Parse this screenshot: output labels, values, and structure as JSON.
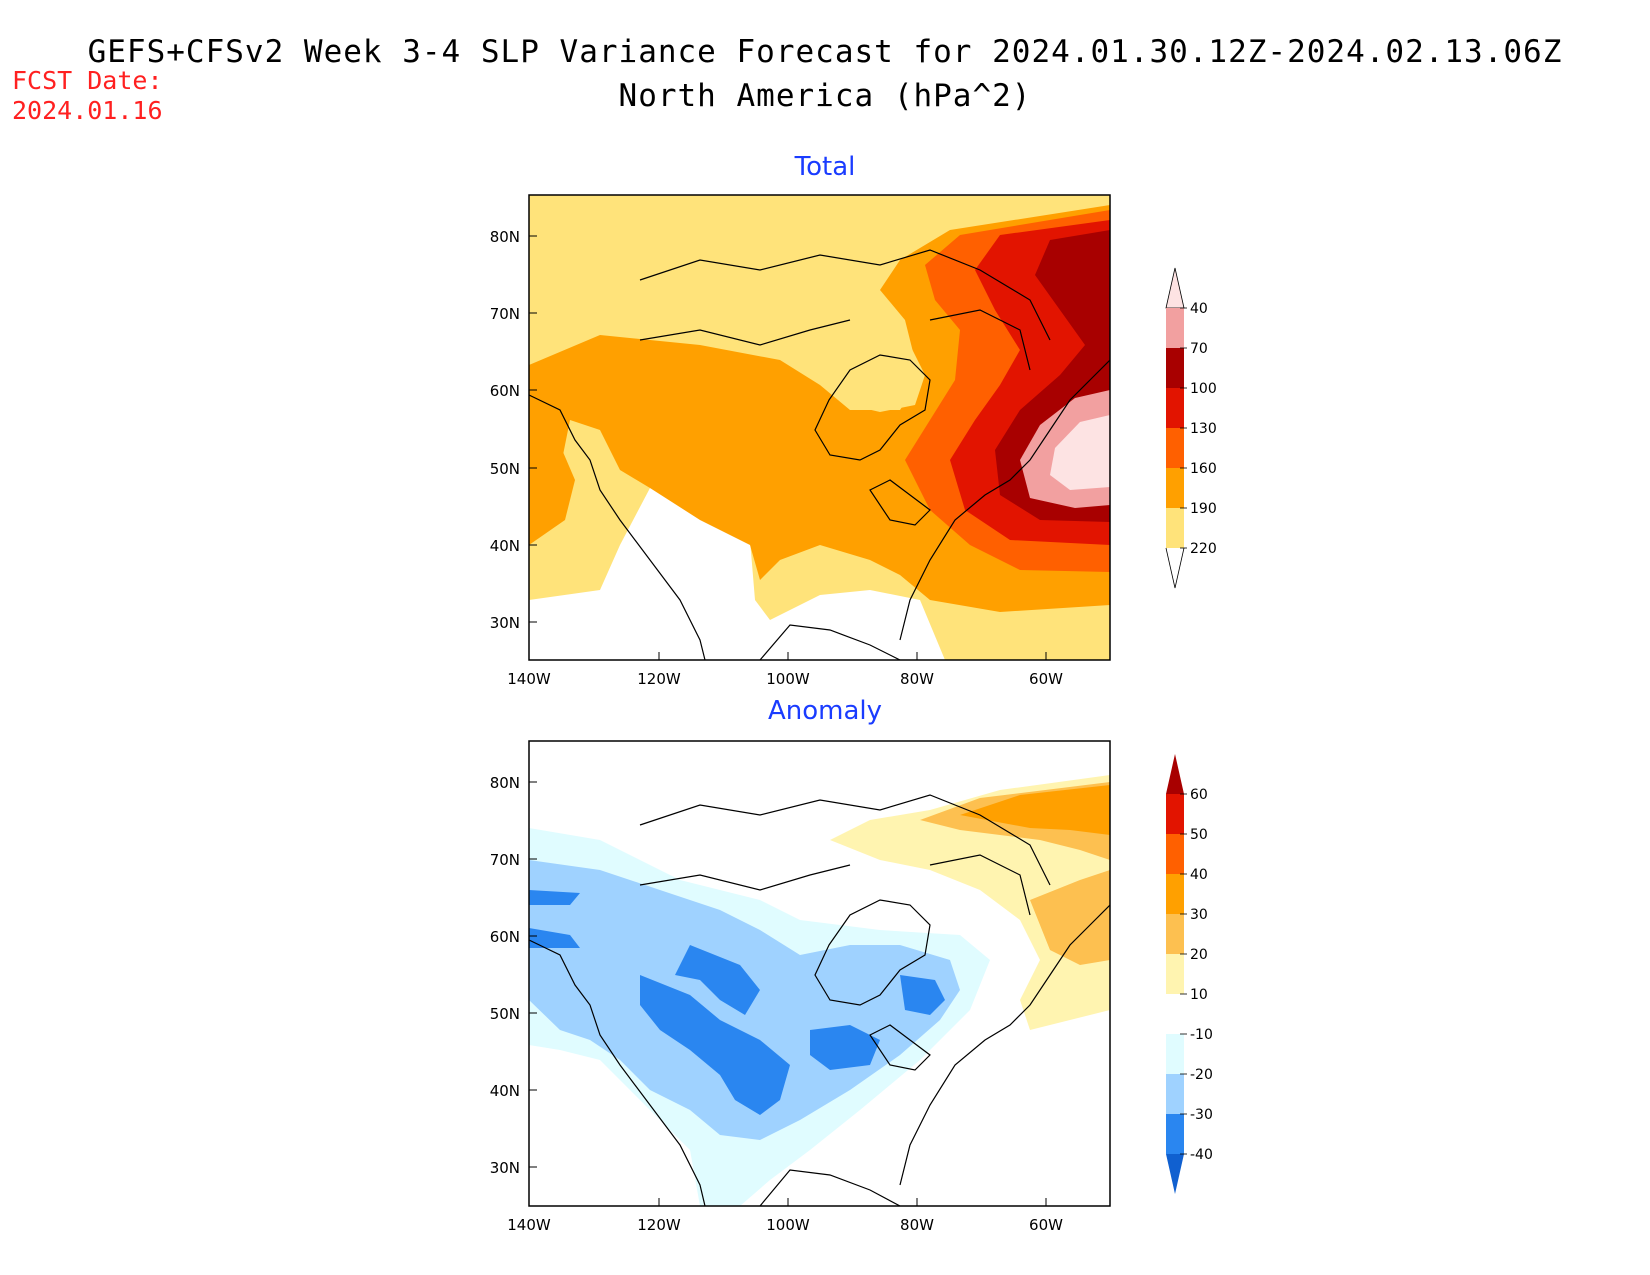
{
  "title": {
    "line1": "GEFS+CFSv2 Week 3-4 SLP Variance Forecast for 2024.01.30.12Z-2024.02.13.06Z",
    "line2": "North America (hPa^2)"
  },
  "forecast_date": {
    "label": "FCST Date:",
    "value": "2024.01.16"
  },
  "panels": [
    {
      "title": "Total",
      "lat_labels": [
        "80N",
        "70N",
        "60N",
        "50N",
        "40N",
        "30N"
      ],
      "lon_labels": [
        "140W",
        "120W",
        "100W",
        "80W",
        "60W"
      ],
      "colorbar": {
        "levels": [
          "40",
          "70",
          "100",
          "130",
          "160",
          "190",
          "220"
        ],
        "colors": [
          "#ffe37a",
          "#ffa000",
          "#ff6000",
          "#e21400",
          "#a80000",
          "#f2a0a0",
          "#fde3e3"
        ]
      }
    },
    {
      "title": "Anomaly",
      "lat_labels": [
        "80N",
        "70N",
        "60N",
        "50N",
        "40N",
        "30N"
      ],
      "lon_labels": [
        "140W",
        "120W",
        "100W",
        "80W",
        "60W"
      ],
      "colorbar": {
        "levels": [
          "60",
          "50",
          "40",
          "30",
          "20",
          "10",
          "-10",
          "-20",
          "-30",
          "-40"
        ],
        "colors": [
          "#a80000",
          "#e21400",
          "#ff6000",
          "#ffa000",
          "#fdc050",
          "#fff4b0",
          "#ffffff",
          "#e0fcff",
          "#9fd2ff",
          "#2a86f0",
          "#1060d0"
        ]
      }
    }
  ]
}
